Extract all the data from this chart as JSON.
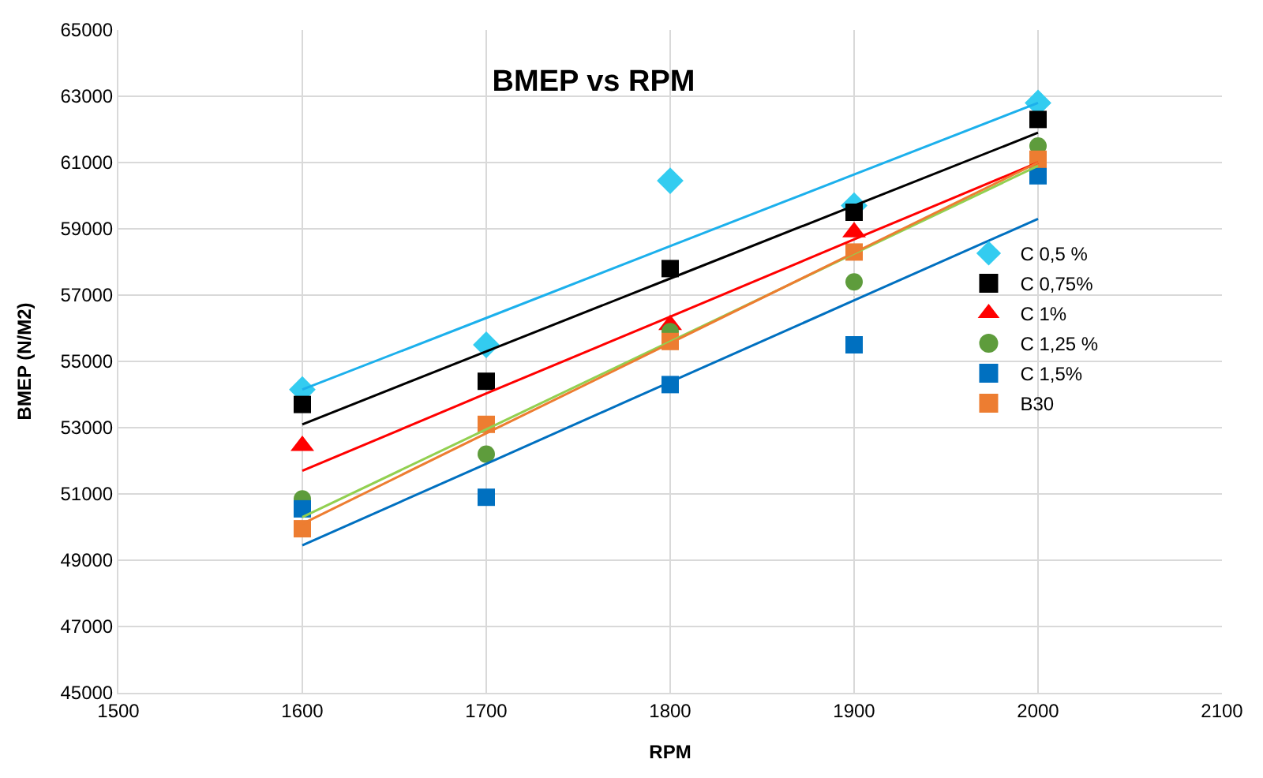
{
  "chart_data": {
    "type": "scatter",
    "title": "BMEP vs RPM",
    "xlabel": "RPM",
    "ylabel": "BMEP (N/M2)",
    "x": [
      1600,
      1700,
      1800,
      1900,
      2000
    ],
    "series": [
      {
        "name": "C 0,5 %",
        "color": "#33ccf0",
        "marker": "diamond",
        "values": [
          54150,
          55500,
          60450,
          59700,
          62800
        ]
      },
      {
        "name": "C 0,75%",
        "color": "#000000",
        "marker": "square",
        "values": [
          53700,
          54400,
          57800,
          59500,
          62300
        ]
      },
      {
        "name": "C 1%",
        "color": "#ff0000",
        "marker": "triangle",
        "values": [
          52450,
          null,
          56100,
          58900,
          null
        ]
      },
      {
        "name": "C 1,25 %",
        "color": "#5e9c3c",
        "marker": "circle",
        "values": [
          50850,
          52200,
          55900,
          57400,
          61500
        ]
      },
      {
        "name": "C 1,5%",
        "color": "#0070c0",
        "marker": "square",
        "values": [
          50550,
          50900,
          54300,
          55500,
          60600
        ]
      },
      {
        "name": "B30",
        "color": "#ed7d31",
        "marker": "square",
        "values": [
          49950,
          53100,
          55600,
          58300,
          61100
        ]
      },
      {
        "type": "line",
        "color": "#1cb0ec",
        "values": [
          54150,
          56310,
          58480,
          60640,
          62800
        ]
      },
      {
        "type": "line",
        "color": "#000000",
        "values": [
          53100,
          55300,
          57500,
          59700,
          61900
        ]
      },
      {
        "type": "line",
        "color": "#ff0000",
        "values": [
          51700,
          54030,
          56350,
          58680,
          61000
        ]
      },
      {
        "type": "line",
        "color": "#92d050",
        "values": [
          50300,
          52950,
          55600,
          58250,
          60900
        ]
      },
      {
        "type": "line",
        "color": "#0070c0",
        "values": [
          49450,
          51910,
          54380,
          56840,
          59300
        ]
      },
      {
        "type": "line",
        "color": "#ed7d31",
        "values": [
          50100,
          52830,
          55550,
          58280,
          61000
        ]
      }
    ],
    "xlim": [
      1500,
      2100
    ],
    "xticks": [
      1500,
      1600,
      1700,
      1800,
      1900,
      2000,
      2100
    ],
    "ylim": [
      45000,
      65000
    ],
    "yticks": [
      45000,
      47000,
      49000,
      51000,
      53000,
      55000,
      57000,
      59000,
      61000,
      63000,
      65000
    ],
    "grid": true,
    "legend": "right"
  }
}
